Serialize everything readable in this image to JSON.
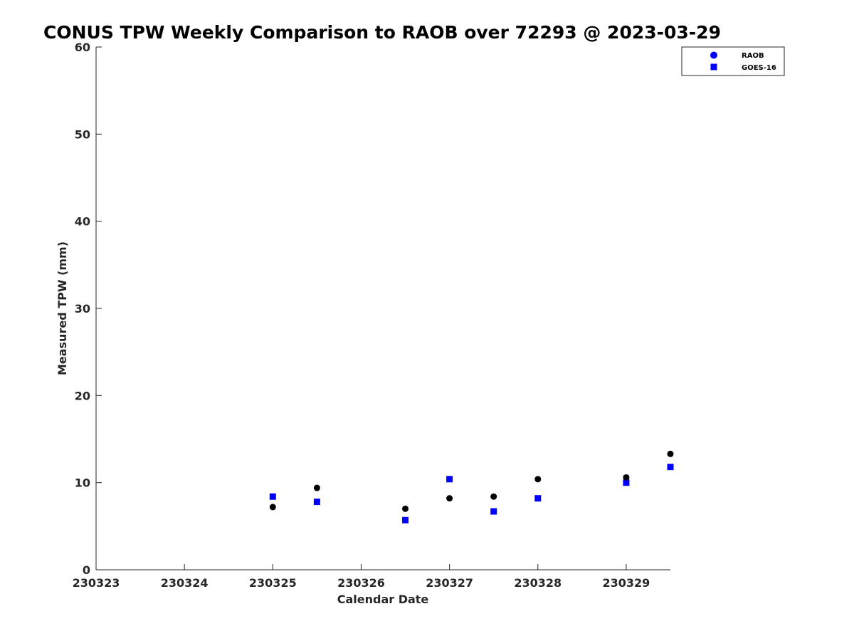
{
  "chart_data": {
    "type": "scatter",
    "title": "CONUS TPW Weekly Comparison to RAOB over 72293 @ 2023-03-29",
    "xlabel": "Calendar Date",
    "ylabel": "Measured TPW (mm)",
    "x_ticks": [
      "230323",
      "230324",
      "230325",
      "230326",
      "230327",
      "230328",
      "230329"
    ],
    "y_ticks": [
      "0",
      "10",
      "20",
      "30",
      "40",
      "50",
      "60"
    ],
    "xlim": [
      "2023-03-23 00:00",
      "2023-03-29 12:00"
    ],
    "ylim": [
      0,
      60
    ],
    "grid": false,
    "legend_position": "top-right",
    "legend": [
      {
        "label": "RAOB",
        "marker": "circle",
        "color": "#0000ff"
      },
      {
        "label": "GOES-16",
        "marker": "square",
        "color": "#0000ff"
      }
    ],
    "series": [
      {
        "name": "RAOB",
        "color": "#000000",
        "marker": "circle",
        "points": [
          {
            "x": "2023-03-25 00:00",
            "y": 7.2
          },
          {
            "x": "2023-03-25 12:00",
            "y": 9.4
          },
          {
            "x": "2023-03-26 12:00",
            "y": 7.0
          },
          {
            "x": "2023-03-27 00:00",
            "y": 8.2
          },
          {
            "x": "2023-03-27 12:00",
            "y": 8.4
          },
          {
            "x": "2023-03-28 00:00",
            "y": 10.4
          },
          {
            "x": "2023-03-29 00:00",
            "y": 10.6
          },
          {
            "x": "2023-03-29 12:00",
            "y": 13.3
          }
        ]
      },
      {
        "name": "GOES-16",
        "color": "#0000ff",
        "marker": "square",
        "points": [
          {
            "x": "2023-03-25 00:00",
            "y": 8.4
          },
          {
            "x": "2023-03-25 12:00",
            "y": 7.8
          },
          {
            "x": "2023-03-26 12:00",
            "y": 5.7
          },
          {
            "x": "2023-03-27 00:00",
            "y": 10.4
          },
          {
            "x": "2023-03-27 12:00",
            "y": 6.7
          },
          {
            "x": "2023-03-28 00:00",
            "y": 8.2
          },
          {
            "x": "2023-03-29 00:00",
            "y": 10.0
          },
          {
            "x": "2023-03-29 12:00",
            "y": 11.8
          }
        ]
      }
    ]
  }
}
